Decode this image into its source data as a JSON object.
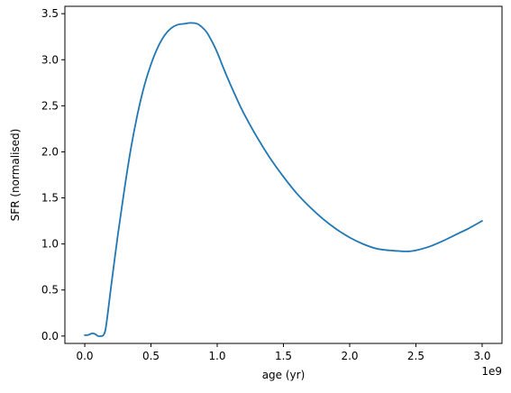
{
  "chart_data": {
    "type": "line",
    "title": "",
    "xlabel": "age (yr)",
    "ylabel": "SFR (normalised)",
    "x_offset_label": "1e9",
    "xlim": [
      -0.15,
      3.15
    ],
    "ylim": [
      -0.08,
      3.58
    ],
    "x_ticks": [
      {
        "value": 0.0,
        "label": "0.0"
      },
      {
        "value": 0.5,
        "label": "0.5"
      },
      {
        "value": 1.0,
        "label": "1.0"
      },
      {
        "value": 1.5,
        "label": "1.5"
      },
      {
        "value": 2.0,
        "label": "2.0"
      },
      {
        "value": 2.5,
        "label": "2.5"
      },
      {
        "value": 3.0,
        "label": "3.0"
      }
    ],
    "y_ticks": [
      {
        "value": 0.0,
        "label": "0.0"
      },
      {
        "value": 0.5,
        "label": "0.5"
      },
      {
        "value": 1.0,
        "label": "1.0"
      },
      {
        "value": 1.5,
        "label": "1.5"
      },
      {
        "value": 2.0,
        "label": "2.0"
      },
      {
        "value": 2.5,
        "label": "2.5"
      },
      {
        "value": 3.0,
        "label": "3.0"
      },
      {
        "value": 3.5,
        "label": "3.5"
      }
    ],
    "grid": false,
    "series": [
      {
        "color": "#1f77b4",
        "x": [
          0.0,
          0.02,
          0.04,
          0.06,
          0.08,
          0.1,
          0.12,
          0.14,
          0.16,
          0.2,
          0.25,
          0.3,
          0.35,
          0.4,
          0.45,
          0.5,
          0.55,
          0.6,
          0.65,
          0.7,
          0.75,
          0.8,
          0.85,
          0.88,
          0.92,
          0.96,
          1.0,
          1.05,
          1.1,
          1.15,
          1.2,
          1.3,
          1.4,
          1.5,
          1.6,
          1.7,
          1.8,
          1.9,
          2.0,
          2.1,
          2.2,
          2.3,
          2.4,
          2.45,
          2.5,
          2.6,
          2.7,
          2.8,
          2.9,
          3.0
        ],
        "y": [
          0.01,
          0.01,
          0.02,
          0.03,
          0.02,
          0.0,
          0.0,
          0.01,
          0.1,
          0.55,
          1.1,
          1.6,
          2.05,
          2.42,
          2.72,
          2.95,
          3.13,
          3.26,
          3.34,
          3.38,
          3.39,
          3.4,
          3.39,
          3.36,
          3.3,
          3.2,
          3.08,
          2.9,
          2.73,
          2.57,
          2.42,
          2.16,
          1.93,
          1.73,
          1.55,
          1.4,
          1.27,
          1.16,
          1.07,
          1.0,
          0.95,
          0.93,
          0.92,
          0.92,
          0.93,
          0.97,
          1.03,
          1.1,
          1.17,
          1.25
        ]
      }
    ]
  }
}
